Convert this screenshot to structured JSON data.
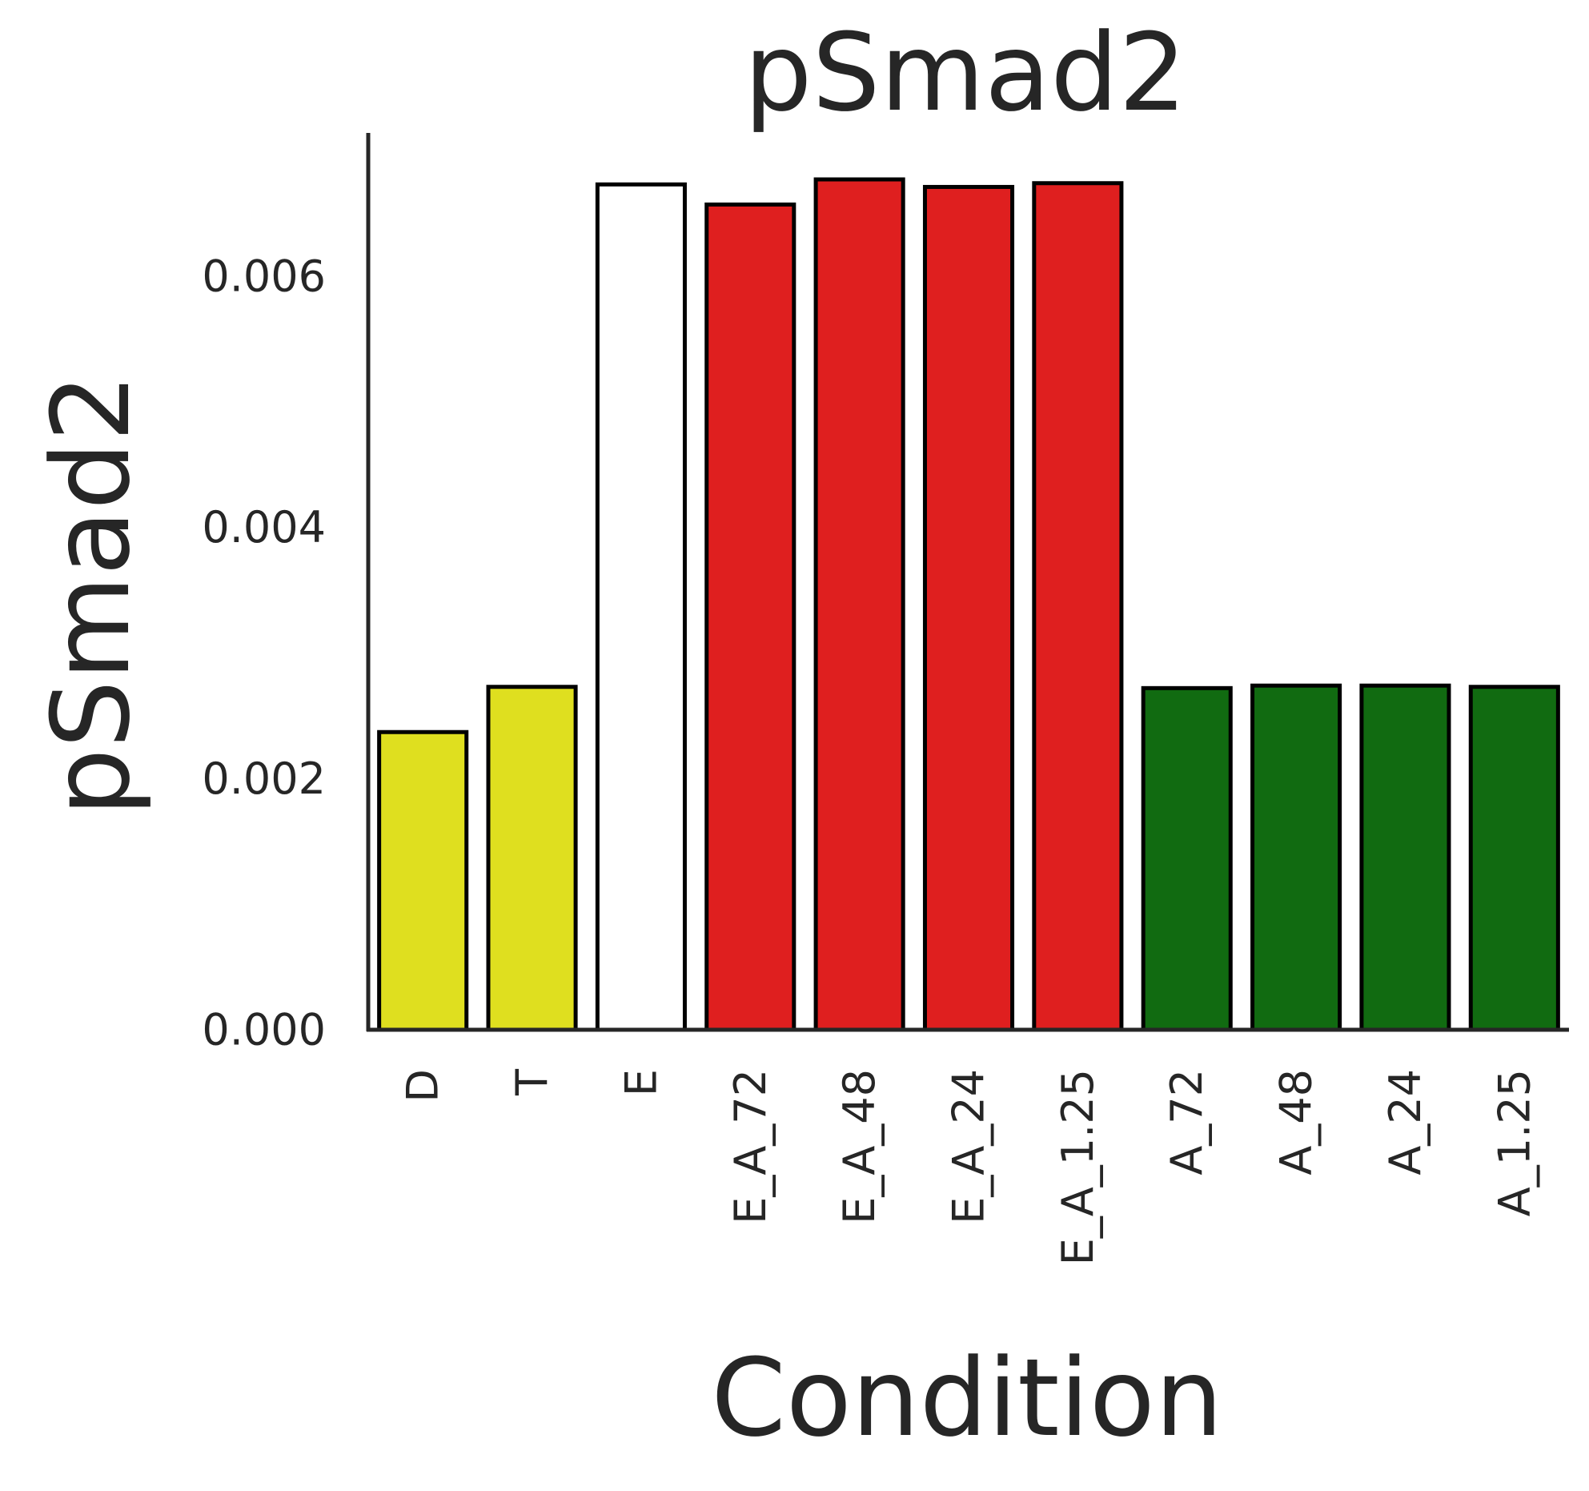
{
  "chart_data": {
    "type": "bar",
    "title": "pSmad2",
    "xlabel": "Condition",
    "ylabel": "pSmad2",
    "categories": [
      "D",
      "T",
      "E",
      "E_A_72",
      "E_A_48",
      "E_A_24",
      "E_A_1.25",
      "A_72",
      "A_48",
      "A_24",
      "A_1.25"
    ],
    "values": [
      0.00237,
      0.00273,
      0.00673,
      0.00657,
      0.00677,
      0.00671,
      0.00674,
      0.00272,
      0.00274,
      0.00274,
      0.00273
    ],
    "colors": [
      "#dfdf1f",
      "#dfdf1f",
      "#ffffff",
      "#df1f1f",
      "#df1f1f",
      "#df1f1f",
      "#df1f1f",
      "#116b11",
      "#116b11",
      "#116b11",
      "#116b11"
    ],
    "yticks": [
      0,
      0.002,
      0.004,
      0.006
    ],
    "ytick_labels": [
      "0.000",
      "0.002",
      "0.004",
      "0.006"
    ],
    "ylim": [
      0,
      0.00714
    ],
    "grid": false,
    "legend": "none"
  }
}
